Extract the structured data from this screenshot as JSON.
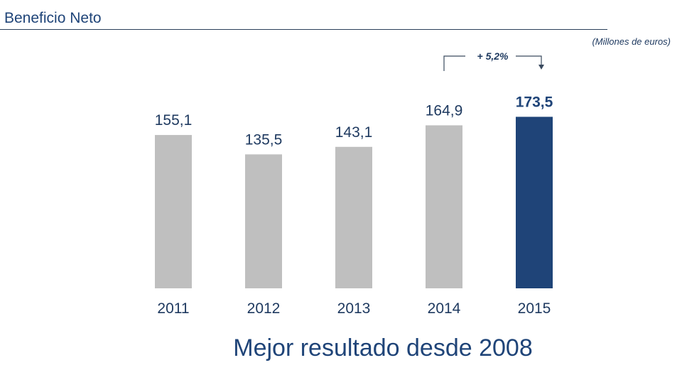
{
  "header": {
    "title": "Beneficio Neto"
  },
  "chart_data": {
    "type": "bar",
    "title": "Beneficio Neto",
    "units": "(Millones de euros)",
    "categories": [
      "2011",
      "2012",
      "2013",
      "2014",
      "2015"
    ],
    "values": [
      155.1,
      135.5,
      143.1,
      164.9,
      173.5
    ],
    "value_labels": [
      "155,1",
      "135,5",
      "143,1",
      "164,9",
      "173,5"
    ],
    "highlight_index": 4,
    "ylim": [
      0,
      176
    ],
    "grid": false,
    "annotation": "+ 5,2%",
    "colors": {
      "default_bar": "#bfbfbf",
      "highlight_bar": "#1f4478",
      "text": "#1f3a60"
    }
  },
  "footer": {
    "subtitle": "Mejor resultado desde 2008"
  }
}
